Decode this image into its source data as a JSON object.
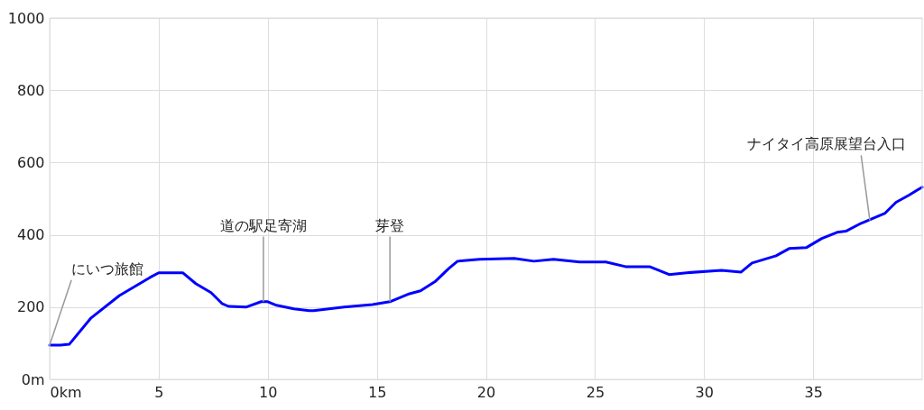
{
  "chart_data": {
    "type": "line",
    "x": [
      0,
      0.5,
      0.9,
      1.9,
      3.2,
      4.6,
      5.0,
      5.5,
      6.1,
      6.7,
      7.4,
      7.9,
      8.2,
      9.0,
      9.7,
      10.0,
      10.4,
      11.2,
      11.9,
      12.1,
      13.5,
      14.8,
      15.6,
      16.5,
      17.0,
      17.7,
      18.3,
      18.7,
      19.7,
      21.3,
      22.2,
      23.1,
      24.3,
      25.5,
      26.4,
      27.5,
      28.4,
      29.2,
      30.8,
      31.7,
      32.2,
      33.3,
      33.9,
      34.7,
      35.4,
      36.1,
      36.5,
      37.2,
      38.3,
      38.8,
      39.4,
      40.0
    ],
    "series": [
      {
        "color": "#0000ff",
        "values": [
          95,
          95,
          97,
          170,
          232,
          282,
          295,
          295,
          295,
          265,
          240,
          210,
          202,
          200,
          215,
          215,
          205,
          195,
          190,
          190,
          200,
          207,
          215,
          237,
          245,
          272,
          307,
          327,
          332,
          335,
          327,
          332,
          325,
          325,
          312,
          312,
          290,
          295,
          302,
          297,
          322,
          342,
          362,
          365,
          390,
          407,
          410,
          432,
          460,
          490,
          510,
          532
        ]
      }
    ],
    "xlim": [
      0,
      40
    ],
    "xticks": [
      {
        "value": 0,
        "label": "0km"
      },
      5,
      10,
      15,
      20,
      25,
      30,
      35
    ],
    "ylim": [
      0,
      1000
    ],
    "yticks": [
      {
        "value": 0,
        "label": "0m"
      },
      200,
      400,
      600,
      800,
      1000
    ],
    "grid": true,
    "marker": "none",
    "line_style": "solid",
    "annotations": [
      {
        "text": "にいつ旅館",
        "x": 0,
        "y": 95
      },
      {
        "text": "道の駅足寄湖",
        "x": 9.8,
        "y": 215
      },
      {
        "text": "芽登",
        "x": 15.6,
        "y": 215
      },
      {
        "text": "ナイタイ高原展望台入口",
        "x": 37.6,
        "y": 440
      }
    ]
  }
}
